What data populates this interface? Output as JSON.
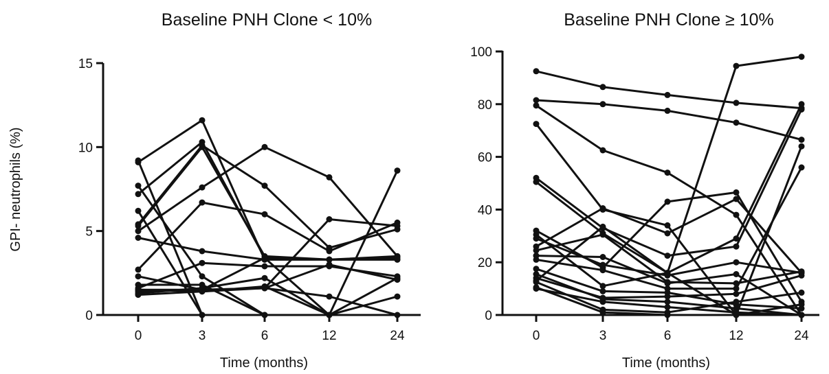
{
  "y_axis_label": "GPI- neutrophils (%)",
  "chart_data": [
    {
      "type": "line",
      "title": "Baseline PNH Clone < 10%",
      "xlabel": "Time (months)",
      "ylabel": "GPI- neutrophils (%)",
      "categories": [
        "0",
        "3",
        "6",
        "12",
        "24"
      ],
      "ylim": [
        0,
        15
      ],
      "yticks": [
        0,
        5,
        10,
        15
      ],
      "series": [
        {
          "values": [
            9.2,
            0,
            null,
            null,
            null
          ]
        },
        {
          "values": [
            9.1,
            11.6,
            3.3,
            3.3,
            3.3
          ]
        },
        {
          "values": [
            7.7,
            2.3,
            0,
            null,
            null
          ]
        },
        {
          "values": [
            7.2,
            10.3,
            3.4,
            3.3,
            3.4
          ]
        },
        {
          "values": [
            6.2,
            0,
            null,
            null,
            null
          ]
        },
        {
          "values": [
            5.4,
            10.1,
            7.7,
            4.0,
            5.1
          ]
        },
        {
          "values": [
            5.3,
            10.0,
            3.5,
            3.3,
            3.5
          ]
        },
        {
          "values": [
            5.0,
            7.6,
            10.0,
            8.2,
            3.5
          ]
        },
        {
          "values": [
            4.6,
            3.8,
            3.3,
            3.3,
            3.3
          ]
        },
        {
          "values": [
            2.7,
            6.7,
            6.0,
            3.8,
            5.5
          ]
        },
        {
          "values": [
            2.3,
            1.5,
            1.6,
            5.7,
            5.3
          ]
        },
        {
          "values": [
            1.8,
            1.8,
            0,
            null,
            null
          ]
        },
        {
          "values": [
            1.6,
            3.1,
            2.9,
            2.9,
            2.3
          ]
        },
        {
          "values": [
            1.5,
            1.4,
            1.6,
            1.1,
            0
          ]
        },
        {
          "values": [
            1.3,
            1.6,
            2.2,
            0,
            2.2
          ]
        },
        {
          "values": [
            1.2,
            1.4,
            1.7,
            0,
            1.1
          ]
        },
        {
          "values": [
            1.4,
            1.5,
            1.6,
            3.0,
            2.1
          ]
        },
        {
          "values": [
            1.5,
            1.5,
            3.4,
            0,
            8.6
          ]
        }
      ]
    },
    {
      "type": "line",
      "title": "Baseline PNH Clone ≥ 10%",
      "xlabel": "Time (months)",
      "ylabel": "",
      "categories": [
        "0",
        "3",
        "6",
        "12",
        "24"
      ],
      "ylim": [
        0,
        100
      ],
      "yticks": [
        0,
        20,
        40,
        60,
        80,
        100
      ],
      "series": [
        {
          "values": [
            92.5,
            86.5,
            83.5,
            80.5,
            78.5
          ]
        },
        {
          "values": [
            81.5,
            80,
            77.5,
            73,
            66.5
          ]
        },
        {
          "values": [
            79.5,
            62.5,
            54,
            38,
            0
          ]
        },
        {
          "values": [
            72.5,
            40,
            34,
            0,
            0
          ]
        },
        {
          "values": [
            52,
            33,
            22.5,
            26,
            78
          ]
        },
        {
          "values": [
            50.5,
            31,
            16,
            29,
            80
          ]
        },
        {
          "values": [
            32,
            18,
            43,
            46.5,
            5
          ]
        },
        {
          "values": [
            30.5,
            11,
            16,
            94.5,
            98
          ]
        },
        {
          "values": [
            29,
            19,
            15,
            20,
            16
          ]
        },
        {
          "values": [
            26,
            40.5,
            31,
            44,
            16
          ]
        },
        {
          "values": [
            24.5,
            30.5,
            12.5,
            12,
            16.5
          ]
        },
        {
          "values": [
            22.5,
            22,
            12,
            15.5,
            0
          ]
        },
        {
          "values": [
            21,
            17,
            10,
            10,
            56
          ]
        },
        {
          "values": [
            17.5,
            9,
            8.5,
            4,
            2.5
          ]
        },
        {
          "values": [
            15.5,
            6,
            5,
            2.5,
            0
          ]
        },
        {
          "values": [
            14,
            6.5,
            7,
            8,
            15
          ]
        },
        {
          "values": [
            13,
            33.5,
            16,
            0,
            4
          ]
        },
        {
          "values": [
            12.5,
            2,
            1,
            5,
            8.5
          ]
        },
        {
          "values": [
            10.5,
            1,
            0,
            0,
            64
          ]
        },
        {
          "values": [
            10,
            5,
            3,
            1,
            0
          ]
        }
      ]
    }
  ]
}
